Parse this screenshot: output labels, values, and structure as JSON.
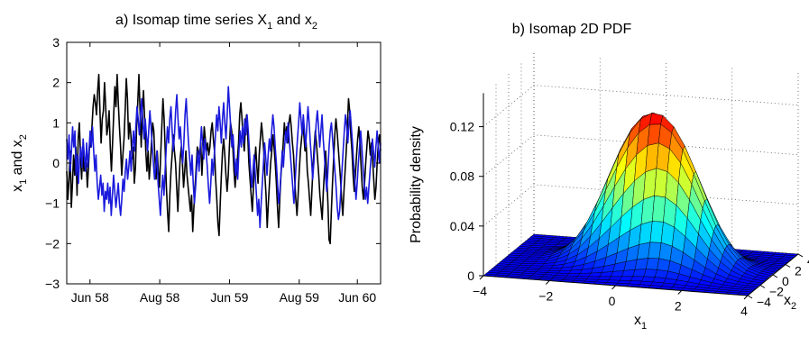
{
  "chart_data": [
    {
      "type": "line",
      "title": {
        "prefix": "a) Isomap time series X",
        "sub1": "1",
        "mid": " and x",
        "sub2": "2"
      },
      "ylabel": {
        "a": "x",
        "a_sub": "1",
        "b": " and x",
        "b_sub": "2"
      },
      "xlabel": "",
      "ylim": [
        -3,
        3
      ],
      "yticks": [
        -3,
        -2,
        -1,
        0,
        1,
        2,
        3
      ],
      "x_range": [
        0,
        27
      ],
      "xticks": [
        {
          "value": 2,
          "label": "Jun 58"
        },
        {
          "value": 8,
          "label": "Aug 58"
        },
        {
          "value": 14,
          "label": "Jun 59"
        },
        {
          "value": 20,
          "label": "Aug 59"
        },
        {
          "value": 25,
          "label": "Jun 60"
        }
      ],
      "grid": false,
      "series": [
        {
          "color": "#000000",
          "values": [
            -0.2,
            -0.9,
            -0.4,
            0.3,
            -1.1,
            -0.5,
            0.2,
            -0.3,
            0.4,
            -0.8,
            0.6,
            1.0,
            0.2,
            -0.4,
            0.3,
            -0.2,
            0.1,
            0.0,
            -0.6,
            -0.1,
            0.5,
            0.4,
            0.9,
            1.4,
            1.7,
            1.5,
            1.2,
            1.8,
            2.2,
            1.3,
            0.5,
            1.1,
            1.3,
            2.0,
            1.4,
            0.7,
            0.9,
            1.3,
            0.4,
            -0.2,
            0.5,
            1.2,
            1.9,
            1.4,
            2.2,
            1.5,
            0.9,
            0.4,
            -0.3,
            0.2,
            0.6,
            1.3,
            2.1,
            1.6,
            0.6,
            1.0,
            0.7,
            0.1,
            0.4,
            -0.5,
            -0.1,
            0.9,
            1.5,
            2.2,
            1.3,
            0.4,
            1.3,
            1.8,
            1.1,
            0.3,
            -0.2,
            0.3,
            -0.4,
            0.0,
            0.5,
            1.0,
            0.8,
            0.1,
            -0.4,
            0.3,
            -0.2,
            -0.6,
            0.2,
            0.9,
            1.6,
            1.1,
            0.3,
            -0.6,
            -1.2,
            -1.7,
            -0.8,
            -0.2,
            0.2,
            0.7,
            0.3,
            0.0,
            -0.6,
            -1.2,
            -0.5,
            0.1,
            0.4,
            0.0,
            -0.6,
            -0.2,
            0.3,
            -0.3,
            -0.6,
            -0.9,
            -1.2,
            -0.8,
            -1.7,
            -1.1,
            -0.6,
            -0.1,
            0.4,
            0.3,
            0.2,
            0.5,
            -0.3,
            0.3,
            0.9,
            0.6,
            0.3,
            0.5,
            0.2,
            0.4,
            0.8,
            1.0,
            0.6,
            0.3,
            -0.4,
            -0.9,
            -1.5,
            -1.8,
            -1.0,
            -0.3,
            0.3,
            0.6,
            0.2,
            -0.3,
            -0.7,
            -0.3,
            0.4,
            1.0,
            0.8,
            0.4,
            -0.2,
            -0.6,
            -0.2,
            0.1,
            0.5,
            1.2,
            1.5,
            1.1,
            0.6,
            0.3,
            0.9,
            1.2,
            0.7,
            0.0,
            -0.4,
            -0.8,
            -1.2,
            -0.6,
            0.0,
            0.4,
            -0.1,
            -0.5,
            0.2,
            0.6,
            1.0,
            0.7,
            0.3,
            -0.3,
            -0.8,
            -1.6,
            -1.0,
            -0.5,
            0.0,
            0.3,
            0.7,
            0.4,
            0.0,
            -0.5,
            -1.1,
            -1.6,
            -0.9,
            -0.3,
            0.1,
            0.5,
            1.0,
            0.6,
            0.9,
            0.5,
            1.0,
            1.2,
            0.9,
            0.5,
            0.2,
            -0.4,
            -0.9,
            -1.3,
            -0.8,
            -0.2,
            0.3,
            0.6,
            1.0,
            0.7,
            0.3,
            0.5,
            -0.2,
            -0.5,
            -0.9,
            -1.3,
            -0.7,
            -0.1,
            0.4,
            0.8,
            0.5,
            0.1,
            -0.3,
            -0.8,
            -1.1,
            -1.4,
            -0.7,
            -0.2,
            0.3,
            -0.3,
            -1.0,
            -1.9,
            -2.0,
            -1.2,
            -0.5,
            0.1,
            0.7,
            1.1,
            0.8,
            0.4,
            0.0,
            -0.4,
            -0.9,
            -1.3,
            -0.7,
            -0.2,
            0.3,
            0.9,
            1.6,
            1.3,
            0.7,
            0.3,
            -0.3,
            -0.7,
            -0.3,
            0.2,
            0.6,
            0.9,
            0.5,
            -0.1,
            -0.6,
            -0.9,
            -0.5,
            0.0,
            0.4,
            0.8,
            0.6,
            0.2,
            0.5,
            0.1,
            -0.4,
            -0.9,
            -0.6,
            0.0,
            0.5,
            0.7,
            0.3
          ]
        },
        {
          "color": "#1a1adc",
          "values": [
            0.6,
            0.1,
            0.7,
            -0.2,
            0.3,
            0.9,
            0.4,
            0.8,
            -0.3,
            0.2,
            -0.5,
            0.1,
            0.4,
            -0.1,
            0.6,
            0.2,
            -0.2,
            0.5,
            -0.1,
            0.3,
            0.8,
            0.4,
            0.9,
            0.3,
            -0.2,
            0.2,
            -0.5,
            -0.9,
            -0.6,
            -0.3,
            -0.8,
            -0.5,
            -1.2,
            -0.7,
            -0.9,
            -0.5,
            -1.0,
            -0.6,
            -1.3,
            -0.8,
            -0.3,
            -0.7,
            -1.1,
            -0.8,
            -0.5,
            -1.0,
            -1.3,
            -0.9,
            -0.4,
            -0.7,
            -0.2,
            0.1,
            -0.4,
            -0.1,
            0.3,
            -0.2,
            0.4,
            0.8,
            0.3,
            0.9,
            1.4,
            1.1,
            0.7,
            1.2,
            1.6,
            1.0,
            0.6,
            1.1,
            0.7,
            0.3,
            0.8,
            1.3,
            0.9,
            0.4,
            0.0,
            -0.4,
            -0.1,
            0.3,
            -0.5,
            -0.9,
            -1.3,
            -0.7,
            -0.3,
            -0.8,
            -0.2,
            0.4,
            0.9,
            0.5,
            1.1,
            1.4,
            0.8,
            0.3,
            0.7,
            1.3,
            1.7,
            1.1,
            0.6,
            0.9,
            0.4,
            0.0,
            0.5,
            1.2,
            1.6,
            1.0,
            0.5,
            0.1,
            -0.3,
            0.2,
            -0.5,
            -1.0,
            -0.6,
            -0.1,
            0.3,
            -0.2,
            0.4,
            0.9,
            0.5,
            0.1,
            0.6,
            0.3,
            -0.1,
            -0.6,
            -1.0,
            -0.5,
            0.1,
            -0.3,
            0.2,
            0.7,
            1.2,
            0.8,
            1.4,
            1.0,
            0.5,
            1.1,
            1.5,
            1.0,
            0.6,
            1.2,
            1.9,
            1.4,
            0.9,
            0.4,
            0.7,
            0.2,
            -0.3,
            0.1,
            -0.4,
            0.3,
            0.8,
            0.4,
            0.9,
            0.5,
            1.1,
            0.7,
            1.2,
            0.8,
            0.3,
            -0.2,
            -0.6,
            -0.2,
            0.2,
            -0.3,
            -0.8,
            -1.3,
            -0.9,
            -1.6,
            -1.0,
            -0.5,
            0.0,
            0.5,
            0.1,
            -0.3,
            0.2,
            0.6,
            0.3,
            0.8,
            1.2,
            0.9,
            0.4,
            0.0,
            -0.5,
            -1.0,
            -0.7,
            -0.2,
            0.3,
            -0.1,
            0.4,
            0.8,
            0.5,
            1.0,
            0.6,
            0.2,
            -0.2,
            -0.6,
            -1.0,
            -0.5,
            0.1,
            0.6,
            1.0,
            1.5,
            1.1,
            0.7,
            1.2,
            0.8,
            0.4,
            0.9,
            1.4,
            1.0,
            0.5,
            0.1,
            -0.4,
            0.0,
            0.5,
            1.0,
            1.3,
            0.9,
            0.4,
            0.8,
            1.2,
            0.6,
            0.2,
            -0.3,
            -0.7,
            -0.2,
            0.4,
            0.8,
            1.0,
            0.6,
            0.2,
            -0.2,
            -0.6,
            -1.1,
            -1.4,
            -1.2,
            -0.7,
            -0.2,
            0.3,
            0.8,
            1.2,
            0.9,
            0.5,
            1.0,
            1.3,
            0.9,
            0.5,
            0.0,
            -0.4,
            -0.9,
            -0.5,
            0.0,
            0.4,
            0.8,
            0.4,
            -0.1,
            -0.5,
            -0.9,
            -0.6,
            -1.0,
            -0.6,
            -0.2,
            0.2,
            0.6,
            0.3,
            -0.1,
            0.4,
            0.8,
            0.4,
            0.0,
            0.5
          ]
        }
      ]
    },
    {
      "type": "surface",
      "title": "b) Isomap 2D PDF",
      "zlabel": "Probability density",
      "xlabel": {
        "a": "x",
        "a_sub": "1"
      },
      "ylabel": {
        "a": "x",
        "a_sub": "2"
      },
      "xlim": [
        -4,
        4
      ],
      "ylim": [
        -4,
        4
      ],
      "zlim": [
        0,
        0.14
      ],
      "xticks": [
        -4,
        -2,
        0,
        2,
        4
      ],
      "yticks": [
        -4,
        -2,
        0,
        2,
        4
      ],
      "zticks": [
        0,
        0.04,
        0.08,
        0.12
      ],
      "ztick_labels": [
        "0",
        "0.04",
        "0.08",
        "0.12"
      ],
      "colormap": "jet",
      "grid": true,
      "peaks": [
        {
          "x1": -0.3,
          "x2": 0.4,
          "density": 0.136
        },
        {
          "x1": 1.1,
          "x2": -0.2,
          "density": 0.136
        }
      ],
      "grid_points": 25
    }
  ]
}
